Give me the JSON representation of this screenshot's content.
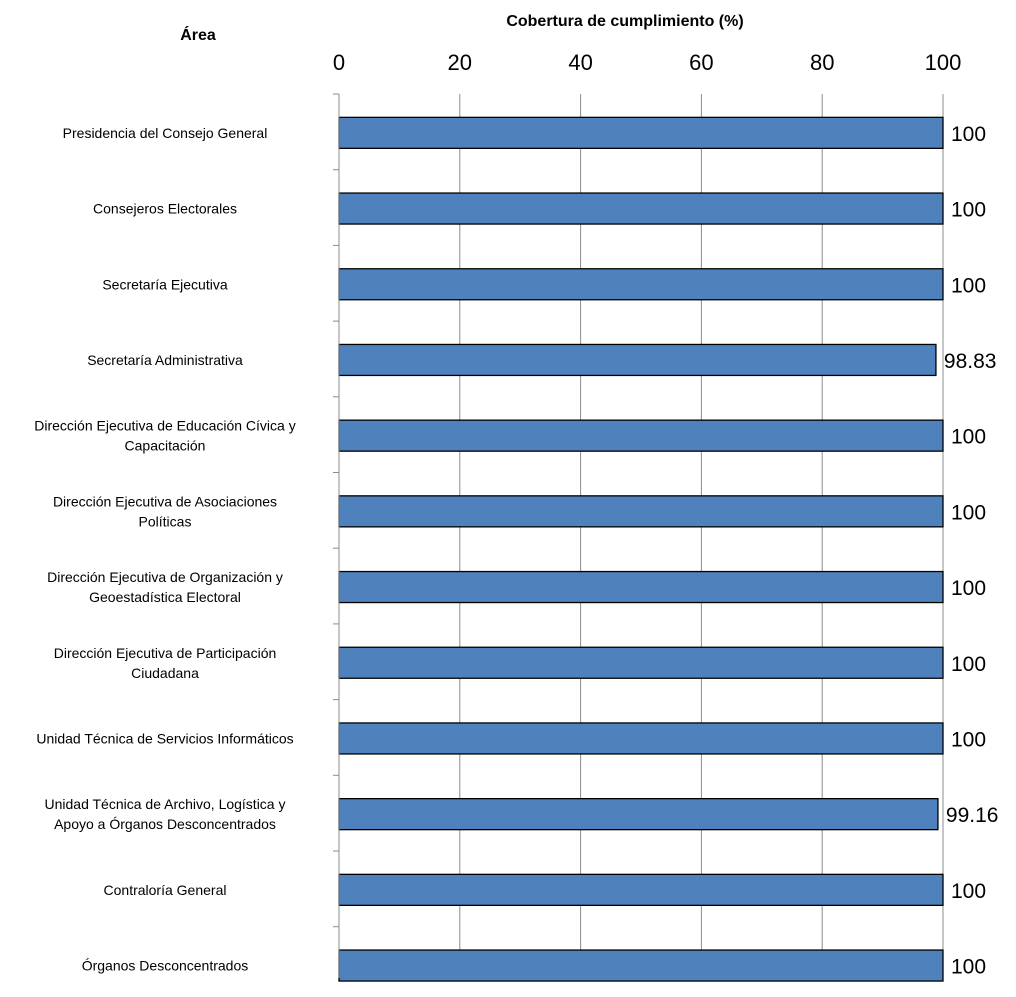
{
  "chart_data": {
    "type": "bar",
    "orientation": "horizontal",
    "title": "",
    "category_axis_title": "Área",
    "value_axis_title": "Cobertura de cumplimiento (%)",
    "xlim": [
      0,
      100
    ],
    "ticks": [
      0,
      20,
      40,
      60,
      80,
      100
    ],
    "tick_labels": [
      "0",
      "20",
      "40",
      "60",
      "80",
      "100"
    ],
    "gridlines": true,
    "categories": [
      [
        "Presidencia del Consejo General"
      ],
      [
        "Consejeros Electorales"
      ],
      [
        "Secretaría Ejecutiva"
      ],
      [
        "Secretaría Administrativa"
      ],
      [
        "Dirección Ejecutiva de Educación Cívica y",
        "Capacitación"
      ],
      [
        "Dirección Ejecutiva de Asociaciones",
        "Políticas"
      ],
      [
        "Dirección Ejecutiva de Organización y",
        "Geoestadística Electoral"
      ],
      [
        "Dirección Ejecutiva de Participación",
        "Ciudadana"
      ],
      [
        "Unidad Técnica de Servicios Informáticos"
      ],
      [
        "Unidad Técnica de Archivo, Logística y",
        "Apoyo a Órganos Desconcentrados"
      ],
      [
        "Contraloría General"
      ],
      [
        "Órganos Desconcentrados"
      ]
    ],
    "values": [
      100,
      100,
      100,
      98.83,
      100,
      100,
      100,
      100,
      100,
      99.16,
      100,
      100
    ],
    "data_labels": [
      "100",
      "100",
      "100",
      "98.83",
      "100",
      "100",
      "100",
      "100",
      "100",
      "99.16",
      "100",
      "100"
    ],
    "bar_color": "#4f81bd",
    "bar_border_color": "#000000",
    "grid_color": "#8c8c8c"
  }
}
